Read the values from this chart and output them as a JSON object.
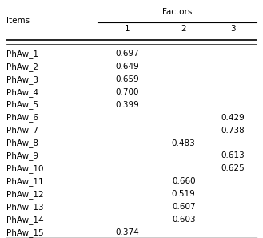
{
  "items": [
    "PhAw_1",
    "PhAw_2",
    "PhAw_3",
    "PhAw_4",
    "PhAw_5",
    "PhAw_6",
    "PhAw_7",
    "PhAw_8",
    "PhAw_9",
    "PhAw_10",
    "PhAw_11",
    "PhAw_12",
    "PhAw_13",
    "PhAw_14",
    "PhAw_15"
  ],
  "factor1": [
    "0.697",
    "0.649",
    "0.659",
    "0.700",
    "0.399",
    "",
    "",
    "",
    "",
    "",
    "",
    "",
    "",
    "",
    "0.374"
  ],
  "factor2": [
    "",
    "",
    "",
    "",
    "",
    "",
    "",
    "0.483",
    "",
    "",
    "0.660",
    "0.519",
    "0.607",
    "0.603",
    ""
  ],
  "factor3": [
    "",
    "",
    "",
    "",
    "",
    "0.429",
    "0.738",
    "",
    "0.613",
    "0.625",
    "",
    "",
    "",
    "",
    ""
  ],
  "header_main": "Factors",
  "header_sub": [
    "1",
    "2",
    "3"
  ],
  "col_items_label": "Items",
  "background_color": "#ffffff",
  "text_color": "#000000",
  "font_size": 7.5
}
